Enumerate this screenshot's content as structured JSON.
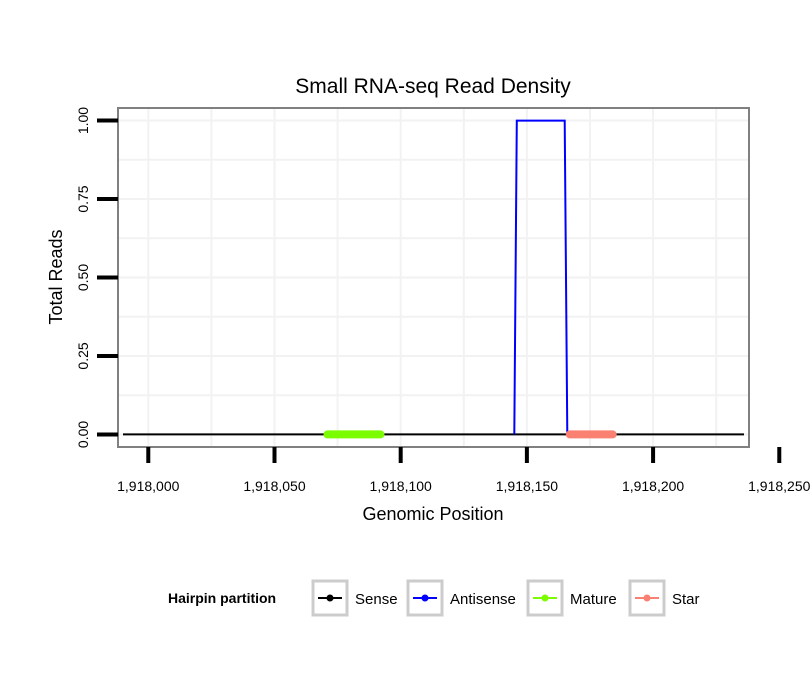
{
  "chart_data": {
    "type": "line",
    "title": "Small RNA-seq Read Density",
    "xlabel": "Genomic Position",
    "ylabel": "Total Reads",
    "xlim": [
      1917988,
      1918238
    ],
    "ylim": [
      -0.04,
      1.04
    ],
    "x_ticks": [
      1918000,
      1918050,
      1918100,
      1918150,
      1918200,
      1918250
    ],
    "x_tick_labels": [
      "1,918,000",
      "1,918,050",
      "1,918,100",
      "1,918,150",
      "1,918,200",
      "1,918,250"
    ],
    "y_ticks": [
      0.0,
      0.25,
      0.5,
      0.75,
      1.0
    ],
    "y_tick_labels": [
      "0.00",
      "0.25",
      "0.50",
      "0.75",
      "1.00"
    ],
    "grid": true,
    "legend": {
      "position": "bottom",
      "title": "Hairpin partition",
      "entries": [
        {
          "label": "Sense",
          "color": "#000000"
        },
        {
          "label": "Antisense",
          "color": "#0000ff"
        },
        {
          "label": "Mature",
          "color": "#7cfc00"
        },
        {
          "label": "Star",
          "color": "#fa8072"
        }
      ]
    },
    "series": [
      {
        "name": "Sense",
        "color": "#000000",
        "x": [
          1917990,
          1918236
        ],
        "values": [
          0,
          0
        ]
      },
      {
        "name": "Antisense",
        "color": "#0000ff",
        "x": [
          1918145,
          1918146,
          1918165,
          1918166
        ],
        "values": [
          0,
          1,
          1,
          0
        ]
      },
      {
        "name": "Mature",
        "color": "#7cfc00",
        "x": [
          1918071,
          1918092
        ],
        "values": [
          0,
          0
        ]
      },
      {
        "name": "Star",
        "color": "#fa8072",
        "x": [
          1918167,
          1918184
        ],
        "values": [
          0,
          0
        ]
      }
    ]
  }
}
